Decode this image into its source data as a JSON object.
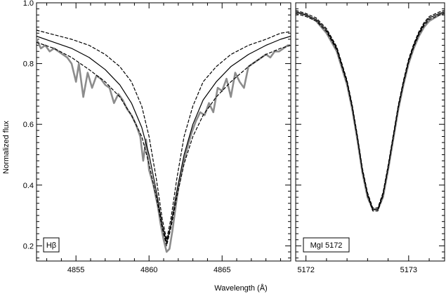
{
  "chart_data": {
    "type": "line",
    "ylabel": "Normalized flux",
    "xlabel": "Wavelength (Å)",
    "ylim": [
      0.15,
      1.0
    ],
    "yticks": [
      0.2,
      0.4,
      0.6,
      0.8,
      1.0
    ],
    "ytick_labels": [
      "0.2",
      "0.4",
      "0.6",
      "0.8",
      "1.0"
    ],
    "panels": [
      {
        "label": "Hβ",
        "xlim": [
          4852.3,
          4869.7
        ],
        "xticks": [
          4855,
          4860,
          4865
        ],
        "xtick_labels": [
          "4855",
          "4860",
          "4865"
        ],
        "series": [
          {
            "style": "observed",
            "color": "#8c8c8c",
            "x": [
              4852.3,
              4852.6,
              4852.9,
              4853.2,
              4853.5,
              4853.8,
              4854.1,
              4854.4,
              4854.7,
              4855.0,
              4855.2,
              4855.5,
              4855.8,
              4856.1,
              4856.4,
              4856.7,
              4857.0,
              4857.3,
              4857.6,
              4857.9,
              4858.2,
              4858.5,
              4858.8,
              4859.1,
              4859.4,
              4859.6,
              4859.8,
              4860.0,
              4860.3,
              4860.6,
              4860.8,
              4861.0,
              4861.2,
              4861.4,
              4861.6,
              4861.8,
              4862.0,
              4862.3,
              4862.6,
              4862.9,
              4863.2,
              4863.5,
              4863.8,
              4864.1,
              4864.4,
              4864.7,
              4865.0,
              4865.3,
              4865.6,
              4865.9,
              4866.2,
              4866.5,
              4866.8,
              4867.1,
              4867.4,
              4867.7,
              4868.0,
              4868.3,
              4868.6,
              4868.9,
              4869.2,
              4869.5,
              4869.7
            ],
            "y": [
              0.88,
              0.85,
              0.86,
              0.84,
              0.85,
              0.84,
              0.83,
              0.82,
              0.8,
              0.74,
              0.8,
              0.69,
              0.77,
              0.72,
              0.76,
              0.75,
              0.73,
              0.72,
              0.67,
              0.7,
              0.68,
              0.65,
              0.63,
              0.6,
              0.56,
              0.48,
              0.55,
              0.45,
              0.4,
              0.33,
              0.27,
              0.22,
              0.18,
              0.19,
              0.25,
              0.32,
              0.39,
              0.46,
              0.52,
              0.57,
              0.61,
              0.64,
              0.63,
              0.67,
              0.64,
              0.72,
              0.71,
              0.75,
              0.69,
              0.77,
              0.74,
              0.72,
              0.79,
              0.8,
              0.81,
              0.82,
              0.83,
              0.82,
              0.84,
              0.84,
              0.85,
              0.86,
              0.86
            ]
          },
          {
            "style": "model-solid",
            "color": "#000000",
            "x": [
              4852.3,
              4853.5,
              4854.7,
              4855.9,
              4857.0,
              4858.0,
              4858.8,
              4859.5,
              4860.0,
              4860.5,
              4860.9,
              4861.2,
              4861.5,
              4861.9,
              4862.4,
              4863.0,
              4863.7,
              4864.6,
              4865.6,
              4866.8,
              4868.0,
              4869.0,
              4869.7
            ],
            "y": [
              0.89,
              0.87,
              0.85,
              0.82,
              0.78,
              0.73,
              0.67,
              0.59,
              0.5,
              0.38,
              0.27,
              0.21,
              0.27,
              0.38,
              0.5,
              0.6,
              0.68,
              0.74,
              0.79,
              0.83,
              0.86,
              0.88,
              0.89
            ]
          },
          {
            "style": "model-dashed-upper",
            "color": "#000000",
            "x": [
              4852.3,
              4853.5,
              4854.7,
              4855.9,
              4857.0,
              4858.0,
              4858.8,
              4859.5,
              4860.0,
              4860.5,
              4860.9,
              4861.2,
              4861.5,
              4861.9,
              4862.4,
              4863.0,
              4863.7,
              4864.6,
              4865.6,
              4866.8,
              4868.0,
              4869.0,
              4869.7
            ],
            "y": [
              0.91,
              0.895,
              0.88,
              0.86,
              0.83,
              0.79,
              0.74,
              0.66,
              0.56,
              0.42,
              0.29,
              0.22,
              0.29,
              0.42,
              0.56,
              0.66,
              0.74,
              0.79,
              0.83,
              0.86,
              0.88,
              0.9,
              0.905
            ]
          },
          {
            "style": "model-dashed-lower",
            "color": "#000000",
            "x": [
              4852.3,
              4853.5,
              4854.7,
              4855.9,
              4857.0,
              4858.0,
              4858.8,
              4859.5,
              4860.0,
              4860.5,
              4860.9,
              4861.2,
              4861.5,
              4861.9,
              4862.4,
              4863.0,
              4863.7,
              4864.6,
              4865.6,
              4866.8,
              4868.0,
              4869.0,
              4869.7
            ],
            "y": [
              0.87,
              0.85,
              0.82,
              0.78,
              0.74,
              0.69,
              0.63,
              0.56,
              0.47,
              0.36,
              0.26,
              0.2,
              0.26,
              0.36,
              0.47,
              0.56,
              0.63,
              0.69,
              0.74,
              0.79,
              0.83,
              0.85,
              0.86
            ]
          }
        ]
      },
      {
        "label": "MgI 5172",
        "xlim": [
          5171.9,
          5173.35
        ],
        "xticks": [
          5172,
          5173
        ],
        "xtick_labels": [
          "5172",
          "5173"
        ],
        "series": [
          {
            "style": "observed",
            "color": "#8c8c8c",
            "x": [
              5171.9,
              5172.0,
              5172.1,
              5172.2,
              5172.3,
              5172.4,
              5172.45,
              5172.5,
              5172.55,
              5172.6,
              5172.65,
              5172.7,
              5172.75,
              5172.8,
              5172.85,
              5172.9,
              5172.95,
              5173.0,
              5173.05,
              5173.1,
              5173.15,
              5173.2,
              5173.3,
              5173.35
            ],
            "y": [
              0.97,
              0.96,
              0.94,
              0.9,
              0.84,
              0.73,
              0.65,
              0.55,
              0.44,
              0.36,
              0.32,
              0.32,
              0.36,
              0.45,
              0.55,
              0.65,
              0.73,
              0.8,
              0.85,
              0.89,
              0.92,
              0.94,
              0.96,
              0.97
            ]
          },
          {
            "style": "model-solid",
            "color": "#000000",
            "x": [
              5171.9,
              5172.0,
              5172.1,
              5172.2,
              5172.3,
              5172.4,
              5172.45,
              5172.5,
              5172.55,
              5172.6,
              5172.65,
              5172.7,
              5172.75,
              5172.8,
              5172.85,
              5172.9,
              5172.95,
              5173.0,
              5173.05,
              5173.1,
              5173.15,
              5173.2,
              5173.3,
              5173.35
            ],
            "y": [
              0.97,
              0.96,
              0.945,
              0.91,
              0.85,
              0.74,
              0.66,
              0.56,
              0.45,
              0.37,
              0.32,
              0.32,
              0.37,
              0.46,
              0.56,
              0.66,
              0.74,
              0.81,
              0.86,
              0.9,
              0.93,
              0.95,
              0.965,
              0.97
            ]
          },
          {
            "style": "model-dashed-upper",
            "color": "#000000",
            "x": [
              5171.9,
              5172.0,
              5172.1,
              5172.2,
              5172.3,
              5172.4,
              5172.45,
              5172.5,
              5172.55,
              5172.6,
              5172.65,
              5172.7,
              5172.75,
              5172.8,
              5172.85,
              5172.9,
              5172.95,
              5173.0,
              5173.05,
              5173.1,
              5173.15,
              5173.2,
              5173.3,
              5173.35
            ],
            "y": [
              0.975,
              0.965,
              0.95,
              0.915,
              0.855,
              0.745,
              0.665,
              0.565,
              0.455,
              0.375,
              0.325,
              0.325,
              0.375,
              0.465,
              0.565,
              0.665,
              0.745,
              0.815,
              0.865,
              0.905,
              0.935,
              0.955,
              0.97,
              0.975
            ]
          },
          {
            "style": "model-dashed-lower",
            "color": "#000000",
            "x": [
              5171.9,
              5172.0,
              5172.1,
              5172.2,
              5172.3,
              5172.4,
              5172.45,
              5172.5,
              5172.55,
              5172.6,
              5172.65,
              5172.7,
              5172.75,
              5172.8,
              5172.85,
              5172.9,
              5172.95,
              5173.0,
              5173.05,
              5173.1,
              5173.15,
              5173.2,
              5173.3,
              5173.35
            ],
            "y": [
              0.965,
              0.955,
              0.94,
              0.905,
              0.845,
              0.735,
              0.655,
              0.555,
              0.445,
              0.365,
              0.315,
              0.315,
              0.365,
              0.455,
              0.555,
              0.655,
              0.735,
              0.805,
              0.855,
              0.895,
              0.925,
              0.945,
              0.96,
              0.965
            ]
          }
        ]
      }
    ]
  }
}
